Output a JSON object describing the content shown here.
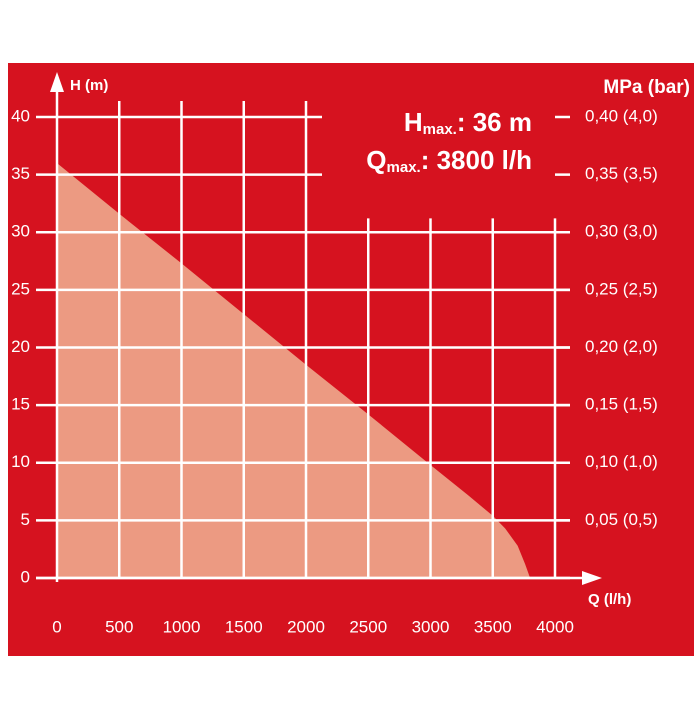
{
  "chart_data": {
    "type": "area",
    "y_axis_title": "H (m)",
    "x_axis_title": "Q (l/h)",
    "y2_axis_title": "MPa (bar)",
    "annotations": [
      {
        "main": "H",
        "sub": "max.",
        "rest": ": 36 m"
      },
      {
        "main": "Q",
        "sub": "max.",
        "rest": ": 3800 l/h"
      }
    ],
    "x": [
      0,
      500,
      1000,
      1500,
      2000,
      2500,
      3000,
      3300,
      3500,
      3600,
      3700,
      3760,
      3800
    ],
    "values": [
      36,
      31.6,
      27.3,
      22.9,
      18.5,
      14.2,
      9.8,
      7.2,
      5.4,
      4.3,
      2.8,
      1.2,
      0
    ],
    "color": "#ec9a82",
    "background": "#d6121f",
    "grid": true,
    "xlim": [
      0,
      4000
    ],
    "xticks": [
      0,
      500,
      1000,
      1500,
      2000,
      2500,
      3000,
      3500,
      4000
    ],
    "ylim": [
      0,
      40
    ],
    "yticks": [
      0,
      5,
      10,
      15,
      20,
      25,
      30,
      35,
      40
    ],
    "y2lim": [
      0,
      0.4
    ],
    "y2ticks": [
      {
        "value": 0.05,
        "label": "0,05 (0,5)"
      },
      {
        "value": 0.1,
        "label": "0,10 (1,0)"
      },
      {
        "value": 0.15,
        "label": "0,15 (1,5)"
      },
      {
        "value": 0.2,
        "label": "0,20 (2,0)"
      },
      {
        "value": 0.25,
        "label": "0,25 (2,5)"
      },
      {
        "value": 0.3,
        "label": "0,30 (3,0)"
      },
      {
        "value": 0.35,
        "label": "0,35 (3,5)"
      },
      {
        "value": 0.4,
        "label": "0,40 (4,0)"
      }
    ]
  }
}
